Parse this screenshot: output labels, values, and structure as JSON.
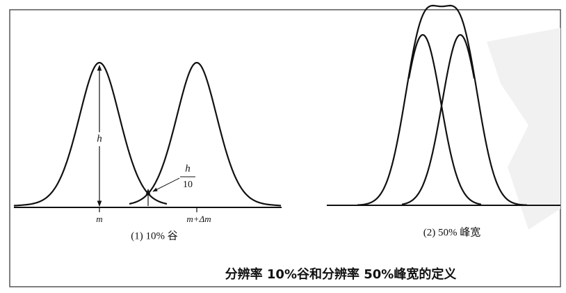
{
  "panel_1": {
    "height_label": "h",
    "valley_label": {
      "numerator": "h",
      "denominator": "10"
    },
    "x_labels": [
      "m",
      "m+Δm"
    ],
    "caption": "(1) 10% 谷"
  },
  "panel_2": {
    "caption": "(2) 50% 峰宽"
  },
  "figure_caption": "分辨率 10%谷和分辨率 50%峰宽的定义"
}
